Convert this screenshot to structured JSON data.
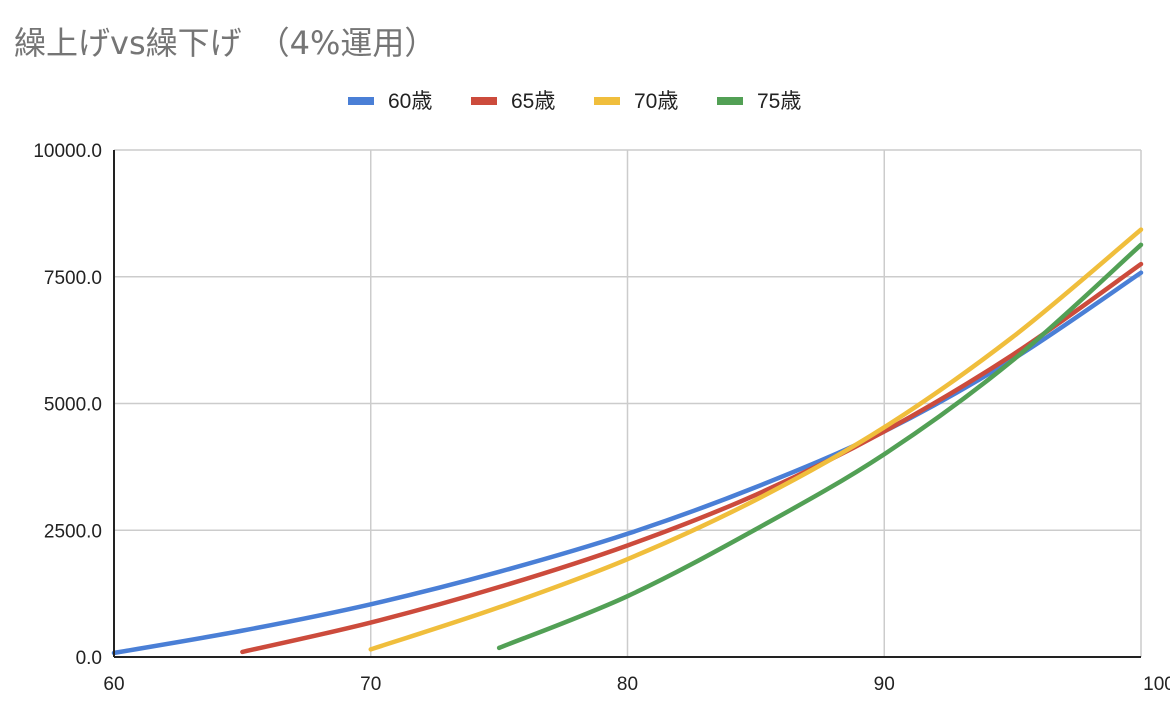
{
  "chart_data": {
    "type": "line",
    "title": "繰上げvs繰下げ　（4%運用）",
    "xlim": [
      60,
      100
    ],
    "ylim": [
      0,
      10000
    ],
    "x_ticks": [
      "60",
      "70",
      "80",
      "90",
      "100"
    ],
    "y_ticks": [
      "0.0",
      "2500.0",
      "5000.0",
      "7500.0",
      "10000.0"
    ],
    "grid": true,
    "legend_position": "top",
    "series": [
      {
        "name": "60歳",
        "color": "#4a7fd6",
        "x": [
          60,
          65,
          70,
          75,
          80,
          85,
          90,
          95,
          100
        ],
        "values": [
          80,
          520,
          1040,
          1680,
          2430,
          3350,
          4450,
          5870,
          7580
        ]
      },
      {
        "name": "65歳",
        "color": "#cc4b3c",
        "x": [
          65,
          70,
          75,
          80,
          85,
          90,
          95,
          100
        ],
        "values": [
          100,
          680,
          1380,
          2200,
          3200,
          4450,
          5960,
          7750
        ]
      },
      {
        "name": "70歳",
        "color": "#f0be3c",
        "x": [
          70,
          75,
          80,
          85,
          90,
          95,
          100
        ],
        "values": [
          150,
          980,
          1930,
          3100,
          4530,
          6310,
          8430
        ]
      },
      {
        "name": "75歳",
        "color": "#52a055",
        "x": [
          75,
          80,
          85,
          90,
          95,
          100
        ],
        "values": [
          180,
          1200,
          2520,
          4000,
          5850,
          8130
        ]
      }
    ]
  }
}
